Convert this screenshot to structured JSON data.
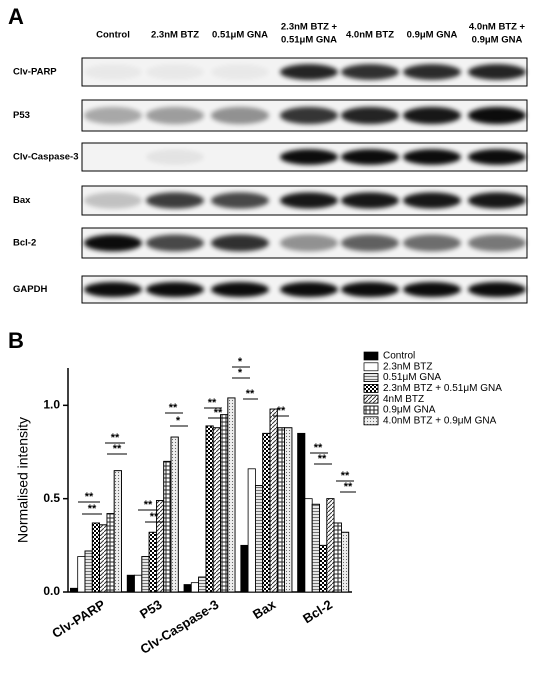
{
  "panel_a": {
    "label": "A",
    "lanes": [
      [
        "Control"
      ],
      [
        "2.3nM BTZ"
      ],
      [
        "0.51μM GNA"
      ],
      [
        "2.3nM BTZ +",
        "0.51μM GNA"
      ],
      [
        "4.0nM BTZ"
      ],
      [
        "0.9μM GNA"
      ],
      [
        "4.0nM BTZ +",
        "0.9μM GNA"
      ]
    ],
    "rows": [
      "Clv-PARP",
      "P53",
      "Clv-Caspase-3",
      "Bax",
      "Bcl-2",
      "GAPDH"
    ]
  },
  "panel_b_label": "B",
  "chart_data": {
    "type": "bar",
    "ylabel": "Normalised intensity",
    "categories": [
      "Clv-PARP",
      "P53",
      "Clv-Caspase-3",
      "Bax",
      "Bcl-2"
    ],
    "series": [
      {
        "name": "Control",
        "color": "#000000",
        "values": [
          0.02,
          0.09,
          0.04,
          0.25,
          0.85
        ]
      },
      {
        "name": "2.3nM BTZ",
        "color": "#ffffff",
        "values": [
          0.19,
          0.09,
          0.05,
          0.66,
          0.5
        ]
      },
      {
        "name": "0.51μM GNA",
        "color": "#e6e6e6",
        "values": [
          0.22,
          0.19,
          0.08,
          0.57,
          0.47
        ]
      },
      {
        "name": "2.3nM BTZ + 0.51μM GNA",
        "color": "#ffffff",
        "values": [
          0.37,
          0.32,
          0.89,
          0.85,
          0.25
        ]
      },
      {
        "name": "4nM BTZ",
        "color": "#ffffff",
        "values": [
          0.36,
          0.49,
          0.88,
          0.98,
          0.5
        ]
      },
      {
        "name": "0.9μM GNA",
        "color": "#ffffff",
        "values": [
          0.42,
          0.7,
          0.95,
          0.88,
          0.37
        ]
      },
      {
        "name": "4.0nM BTZ + 0.9μM GNA",
        "color": "#eeeeee",
        "values": [
          0.65,
          0.83,
          1.04,
          0.88,
          0.32
        ]
      }
    ],
    "ylim": [
      0,
      1.2
    ],
    "yticks": [
      {
        "value": 0,
        "label": "0.0"
      },
      {
        "value": 0.5,
        "label": "0.5"
      },
      {
        "value": 1,
        "label": "1.0"
      }
    ],
    "annotations": [
      "**",
      "**",
      "**",
      "**",
      "**",
      "**",
      "**",
      "*",
      "**",
      "**",
      "*",
      "*",
      "**",
      "**",
      "**",
      "**",
      "**",
      "**"
    ]
  }
}
